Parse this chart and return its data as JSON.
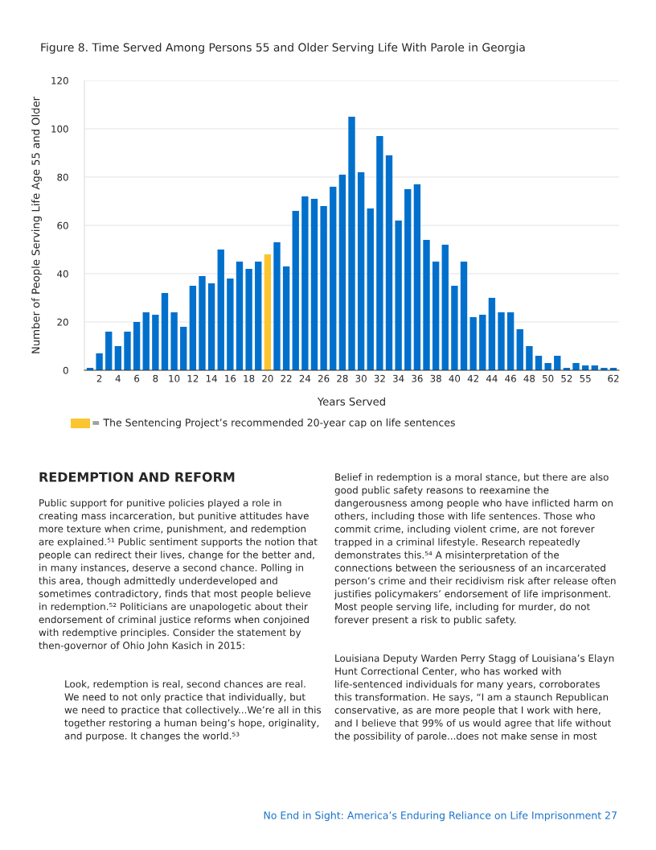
{
  "chart_data": {
    "type": "bar",
    "title": "Figure 8. Time Served Among Persons 55 and Older Serving Life With Parole in Georgia",
    "xlabel": "Years Served",
    "ylabel": "Number of People Serving Life Age 55 and Older",
    "categories": [
      null,
      "2",
      null,
      "4",
      null,
      "6",
      null,
      "8",
      null,
      "10",
      null,
      "12",
      null,
      "14",
      null,
      "16",
      null,
      "18",
      null,
      "20",
      null,
      "22",
      null,
      "24",
      null,
      "26",
      null,
      "28",
      null,
      "30",
      null,
      "32",
      null,
      "34",
      null,
      "36",
      null,
      "38",
      null,
      "40",
      null,
      "42",
      null,
      "44",
      null,
      "46",
      null,
      "48",
      null,
      "50",
      null,
      "52",
      null,
      "55",
      null,
      null,
      "62"
    ],
    "values": [
      1,
      7,
      16,
      10,
      16,
      20,
      24,
      23,
      32,
      24,
      18,
      35,
      39,
      36,
      50,
      38,
      45,
      42,
      45,
      48,
      53,
      43,
      66,
      72,
      71,
      68,
      76,
      81,
      105,
      82,
      67,
      97,
      89,
      62,
      75,
      77,
      54,
      45,
      52,
      35,
      45,
      22,
      23,
      30,
      24,
      24,
      17,
      10,
      6,
      3,
      6,
      1,
      3,
      2,
      2,
      1,
      1
    ],
    "colors": [
      "#0070cc",
      "#0070cc",
      "#0070cc",
      "#0070cc",
      "#0070cc",
      "#0070cc",
      "#0070cc",
      "#0070cc",
      "#0070cc",
      "#0070cc",
      "#0070cc",
      "#0070cc",
      "#0070cc",
      "#0070cc",
      "#0070cc",
      "#0070cc",
      "#0070cc",
      "#0070cc",
      "#0070cc",
      "#fcc52f",
      "#0070cc",
      "#0070cc",
      "#0070cc",
      "#0070cc",
      "#0070cc",
      "#0070cc",
      "#0070cc",
      "#0070cc",
      "#0070cc",
      "#0070cc",
      "#0070cc",
      "#0070cc",
      "#0070cc",
      "#0070cc",
      "#0070cc",
      "#0070cc",
      "#0070cc",
      "#0070cc",
      "#0070cc",
      "#0070cc",
      "#0070cc",
      "#0070cc",
      "#0070cc",
      "#0070cc",
      "#0070cc",
      "#0070cc",
      "#0070cc",
      "#0070cc",
      "#0070cc",
      "#0070cc",
      "#0070cc",
      "#0070cc",
      "#0070cc",
      "#0070cc",
      "#0070cc",
      "#0070cc",
      "#0070cc"
    ],
    "ylim": [
      0,
      120
    ],
    "yticks": [
      0,
      20,
      40,
      60,
      80,
      100,
      120
    ],
    "grid": "y",
    "annotations": [
      "= The Sentencing Project’s recommended 20-year cap on life sentences",
      "REDEMPTION AND REFORM",
      "Public support for punitive policies played a role in creating mass incarceration, but punitive attitudes have more texture when crime, punishment, and redemption are explained.⁵¹ Public sentiment supports the notion that people can redirect their lives, change for the better and, in many instances, deserve a second chance. Polling in this area, though admittedly underdeveloped and sometimes contradictory, finds that most people believe in redemption.⁵² Politicians are unapologetic about their endorsement of criminal justice reforms when conjoined with redemptive principles. Consider the statement by then-governor of Ohio John Kasich in 2015:",
      "Look, redemption is real, second chances are real. We need to not only practice that individually, but we need to practice that collectively...We’re all in this together restoring a human being’s hope, originality, and purpose. It changes the world.⁵³",
      "Belief in redemption is a moral stance, but there are also good public safety reasons to reexamine the dangerousness among people who have inflicted harm on others, including those with life sentences. Those who commit crime, including violent crime, are not forever trapped in a criminal lifestyle. Research repeatedly demonstrates this.⁵⁴ A misinterpretation of the connections between the seriousness of an incarcerated person’s crime and their recidivism risk after release often justifies policymakers’ endorsement of life imprisonment. Most people serving life, including for murder, do not forever present a risk to public safety.",
      "Louisiana Deputy Warden Perry Stagg of Louisiana’s Elayn Hunt Correctional Center, who has worked with life-sentenced individuals for many years, corroborates this transformation. He says, “I am a staunch Republican conservative, as are more people that I work with here, and I believe that 99% of us would agree that life without the possibility of parole...does not make sense in most",
      "No End in Sight: America’s Enduring Reliance on Life Imprisonment 27"
    ]
  }
}
